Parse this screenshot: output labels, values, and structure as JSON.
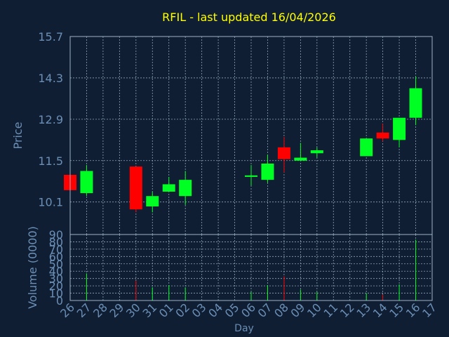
{
  "chart_data": [
    {
      "type": "candlestick",
      "title": "RFIL - last updated 16/04/2026",
      "ylabel": "Price",
      "ylim": [
        9.0,
        15.7
      ],
      "yticks": [
        "10.1",
        "11.5",
        "12.9",
        "14.3",
        "15.7"
      ],
      "categories": [
        "26",
        "27",
        "28",
        "29",
        "30",
        "31",
        "01",
        "02",
        "03",
        "04",
        "05",
        "06",
        "07",
        "08",
        "09",
        "10",
        "11",
        "12",
        "13",
        "14",
        "15",
        "16",
        "17"
      ],
      "candles": [
        {
          "day": "26",
          "open": 11.02,
          "high": 11.02,
          "low": 10.5,
          "close": 10.5
        },
        {
          "day": "27",
          "open": 10.4,
          "high": 11.35,
          "low": 10.3,
          "close": 11.15
        },
        {
          "day": "30",
          "open": 11.3,
          "high": 11.3,
          "low": 9.75,
          "close": 9.85
        },
        {
          "day": "31",
          "open": 9.95,
          "high": 10.45,
          "low": 9.75,
          "close": 10.3
        },
        {
          "day": "01",
          "open": 10.45,
          "high": 10.95,
          "low": 10.45,
          "close": 10.7
        },
        {
          "day": "02",
          "open": 10.3,
          "high": 11.15,
          "low": 10.0,
          "close": 10.85
        },
        {
          "day": "06",
          "open": 10.95,
          "high": 11.35,
          "low": 10.65,
          "close": 11.0
        },
        {
          "day": "07",
          "open": 10.85,
          "high": 11.7,
          "low": 10.75,
          "close": 11.4
        },
        {
          "day": "08",
          "open": 11.95,
          "high": 12.3,
          "low": 11.1,
          "close": 11.55
        },
        {
          "day": "09",
          "open": 11.5,
          "high": 12.1,
          "low": 11.5,
          "close": 11.6
        },
        {
          "day": "10",
          "open": 11.75,
          "high": 11.95,
          "low": 11.6,
          "close": 11.85
        },
        {
          "day": "13",
          "open": 11.65,
          "high": 12.25,
          "low": 11.65,
          "close": 12.25
        },
        {
          "day": "14",
          "open": 12.45,
          "high": 12.75,
          "low": 12.15,
          "close": 12.25
        },
        {
          "day": "15",
          "open": 12.2,
          "high": 12.95,
          "low": 11.95,
          "close": 12.95
        },
        {
          "day": "16",
          "open": 12.95,
          "high": 14.35,
          "low": 12.7,
          "close": 13.95
        }
      ],
      "colors": {
        "up": "#00ff22",
        "down": "#ff0000"
      }
    },
    {
      "type": "bar",
      "ylabel": "Volume (0000)",
      "xlabel": "Day",
      "ylim": [
        0,
        90
      ],
      "yticks": [
        "0",
        "10",
        "20",
        "30",
        "40",
        "50",
        "60",
        "70",
        "80",
        "90"
      ],
      "categories": [
        "26",
        "27",
        "28",
        "29",
        "30",
        "31",
        "01",
        "02",
        "03",
        "04",
        "05",
        "06",
        "07",
        "08",
        "09",
        "10",
        "11",
        "12",
        "13",
        "14",
        "15",
        "16",
        "17"
      ],
      "volumes": [
        {
          "day": "26",
          "value": 2,
          "dir": "down"
        },
        {
          "day": "27",
          "value": 37,
          "dir": "up"
        },
        {
          "day": "30",
          "value": 27,
          "dir": "down"
        },
        {
          "day": "31",
          "value": 18,
          "dir": "up"
        },
        {
          "day": "01",
          "value": 21,
          "dir": "up"
        },
        {
          "day": "02",
          "value": 18,
          "dir": "up"
        },
        {
          "day": "06",
          "value": 12,
          "dir": "up"
        },
        {
          "day": "07",
          "value": 21,
          "dir": "up"
        },
        {
          "day": "08",
          "value": 33,
          "dir": "down"
        },
        {
          "day": "09",
          "value": 15,
          "dir": "up"
        },
        {
          "day": "10",
          "value": 12,
          "dir": "up"
        },
        {
          "day": "13",
          "value": 10,
          "dir": "up"
        },
        {
          "day": "14",
          "value": 8,
          "dir": "down"
        },
        {
          "day": "15",
          "value": 22,
          "dir": "up"
        },
        {
          "day": "16",
          "value": 83,
          "dir": "up"
        }
      ]
    }
  ],
  "style": {
    "background": "#0f1e32",
    "title_color": "#ffff00",
    "label_color": "#6b8fb6",
    "axis_color": "#9fb3c8",
    "grid_color": "#9fb3c8"
  }
}
